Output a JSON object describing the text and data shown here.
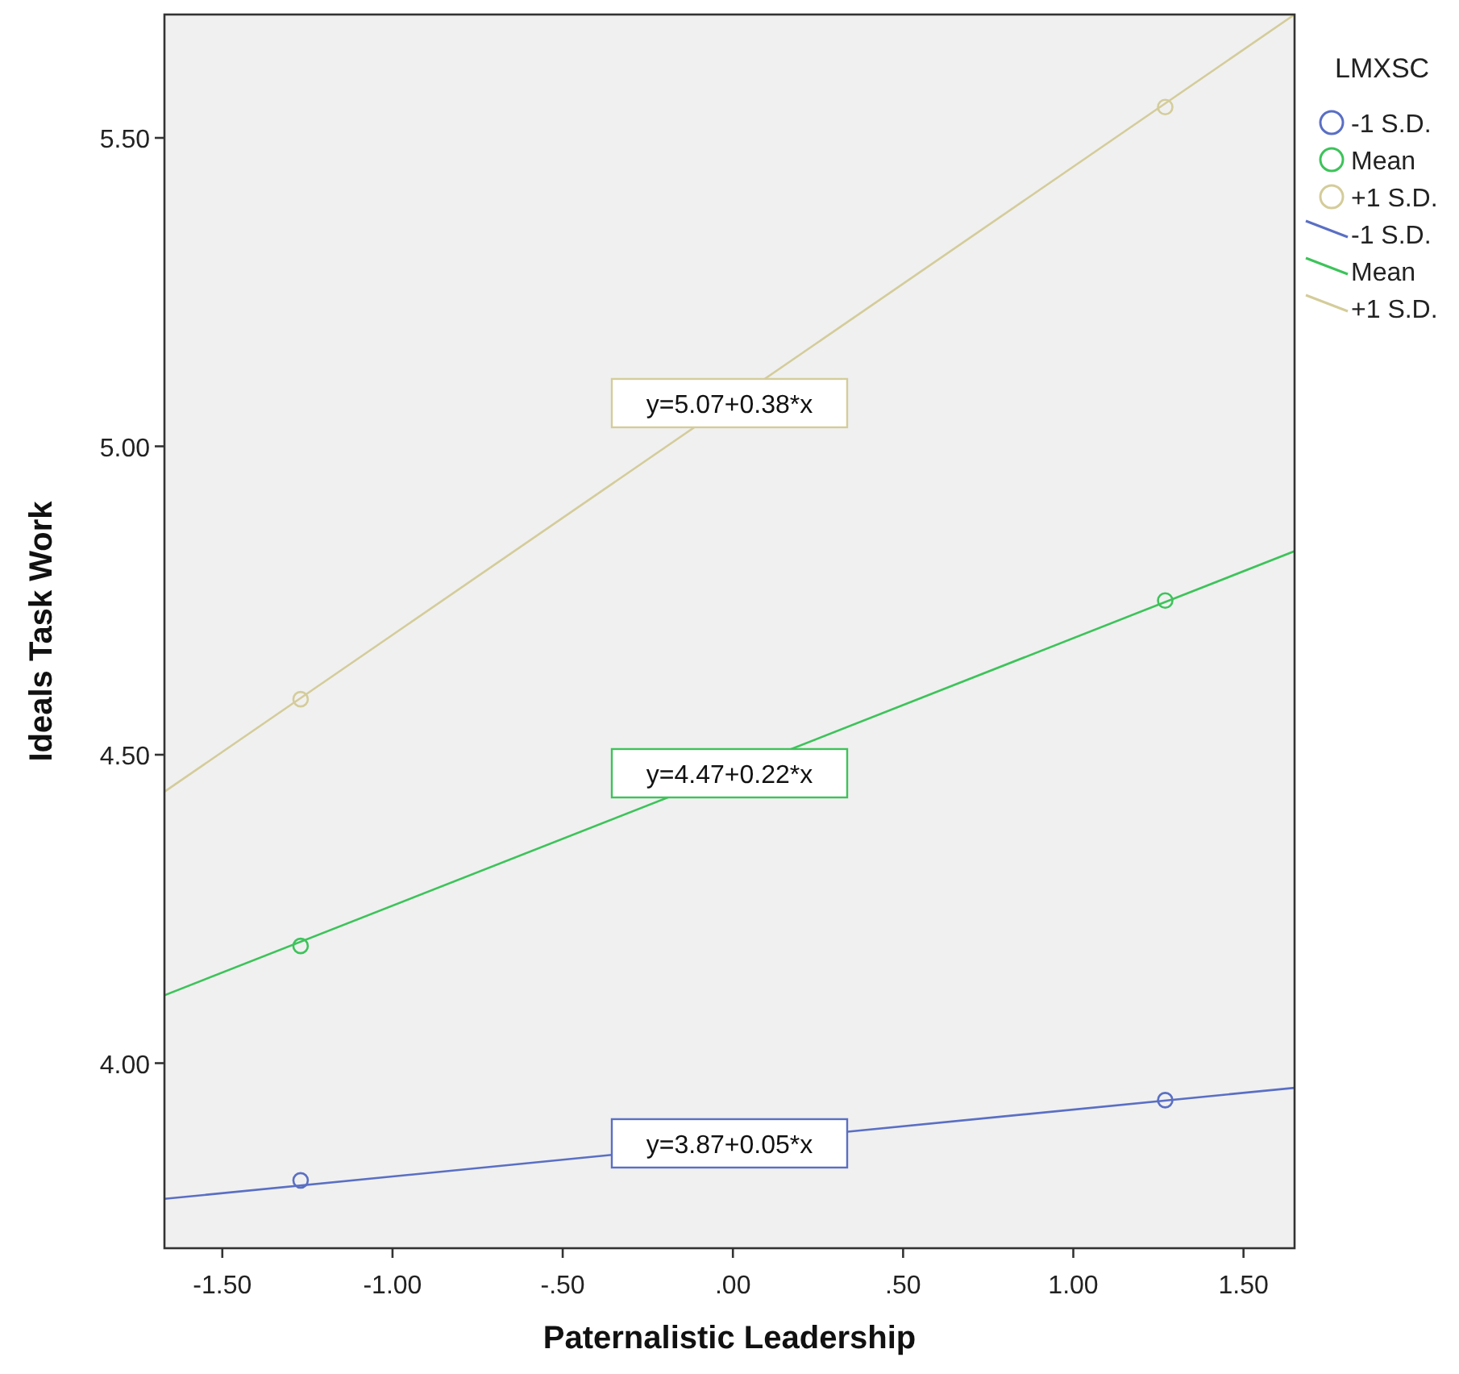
{
  "chart_data": {
    "type": "line",
    "xlabel": "Paternalistic Leadership",
    "ylabel": "Ideals Task Work",
    "legend_title": "LMXSC",
    "xlim": [
      -1.67,
      1.65
    ],
    "xticks": [
      {
        "value": -1.5,
        "label": "-1.50"
      },
      {
        "value": -1,
        "label": "-1.00"
      },
      {
        "value": -0.5,
        "label": "-.50"
      },
      {
        "value": 0,
        "label": ".00"
      },
      {
        "value": 0.5,
        "label": ".50"
      },
      {
        "value": 1,
        "label": "1.00"
      },
      {
        "value": 1.5,
        "label": "1.50"
      }
    ],
    "ylim": [
      3.7,
      5.7
    ],
    "yticks": [
      {
        "value": 4,
        "label": "4.00"
      },
      {
        "value": 4.5,
        "label": "4.50"
      },
      {
        "value": 5,
        "label": "5.00"
      },
      {
        "value": 5.5,
        "label": "5.50"
      }
    ],
    "grid": false,
    "legend": "top right",
    "line_style": "solid",
    "series": [
      {
        "name": "-1 S.D.",
        "type": "scatter",
        "marker": "circle",
        "color": "#5a6fc4",
        "x": [
          -1.27,
          1.27
        ],
        "values": [
          3.81,
          3.94
        ]
      },
      {
        "name": "Mean",
        "type": "scatter",
        "marker": "circle",
        "color": "#3dc35a",
        "x": [
          -1.27,
          1.27
        ],
        "values": [
          4.19,
          4.75
        ]
      },
      {
        "name": "+1 S.D.",
        "type": "scatter",
        "marker": "circle",
        "color": "#d4cc9a",
        "x": [
          -1.27,
          1.27
        ],
        "values": [
          4.59,
          5.55
        ]
      },
      {
        "name": "-1 S.D.",
        "marker": "none",
        "color": "#5a6fc4",
        "x": [
          -1.67,
          1.65
        ],
        "values": [
          3.78,
          3.96
        ]
      },
      {
        "name": "Mean",
        "marker": "none",
        "color": "#3dc35a",
        "x": [
          -1.67,
          1.65
        ],
        "values": [
          4.11,
          4.83
        ]
      },
      {
        "name": "+1 S.D.",
        "marker": "none",
        "color": "#d4cc9a",
        "x": [
          -1.67,
          1.65
        ],
        "values": [
          4.44,
          5.7
        ]
      }
    ],
    "annotations": [
      "y=3.87+0.05*x",
      "y=4.47+0.22*x",
      "y=5.07+0.38*x"
    ]
  }
}
